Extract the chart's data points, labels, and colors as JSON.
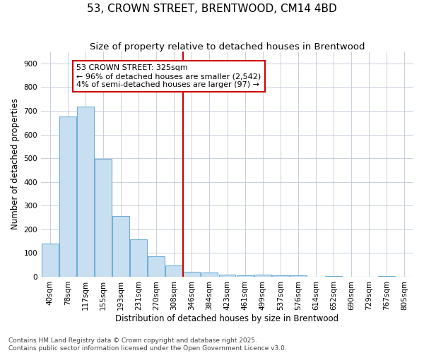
{
  "title": "53, CROWN STREET, BRENTWOOD, CM14 4BD",
  "subtitle": "Size of property relative to detached houses in Brentwood",
  "xlabel": "Distribution of detached houses by size in Brentwood",
  "ylabel": "Number of detached properties",
  "categories": [
    "40sqm",
    "78sqm",
    "117sqm",
    "155sqm",
    "193sqm",
    "231sqm",
    "270sqm",
    "308sqm",
    "346sqm",
    "384sqm",
    "423sqm",
    "461sqm",
    "499sqm",
    "537sqm",
    "576sqm",
    "614sqm",
    "652sqm",
    "690sqm",
    "729sqm",
    "767sqm",
    "805sqm"
  ],
  "values": [
    140,
    675,
    718,
    498,
    257,
    158,
    87,
    47,
    20,
    17,
    10,
    7,
    10,
    7,
    5,
    0,
    3,
    0,
    0,
    3,
    0
  ],
  "bar_color": "#c8dff2",
  "bar_edge_color": "#6eaed6",
  "vline_x": 7.5,
  "annotation_line1": "53 CROWN STREET: 325sqm",
  "annotation_line2": "← 96% of detached houses are smaller (2,542)",
  "annotation_line3": "4% of semi-detached houses are larger (97) →",
  "ylim": [
    0,
    950
  ],
  "yticks": [
    0,
    100,
    200,
    300,
    400,
    500,
    600,
    700,
    800,
    900
  ],
  "footer_line1": "Contains HM Land Registry data © Crown copyright and database right 2025.",
  "footer_line2": "Contains public sector information licensed under the Open Government Licence v3.0.",
  "bg_color": "#ffffff",
  "plot_bg_color": "#ffffff",
  "grid_color": "#c0c8d8",
  "annotation_box_color": "#cc0000",
  "vline_color": "#cc0000",
  "title_fontsize": 11,
  "subtitle_fontsize": 9.5,
  "axis_label_fontsize": 8.5,
  "tick_fontsize": 7.5,
  "annotation_fontsize": 8,
  "footer_fontsize": 6.5
}
